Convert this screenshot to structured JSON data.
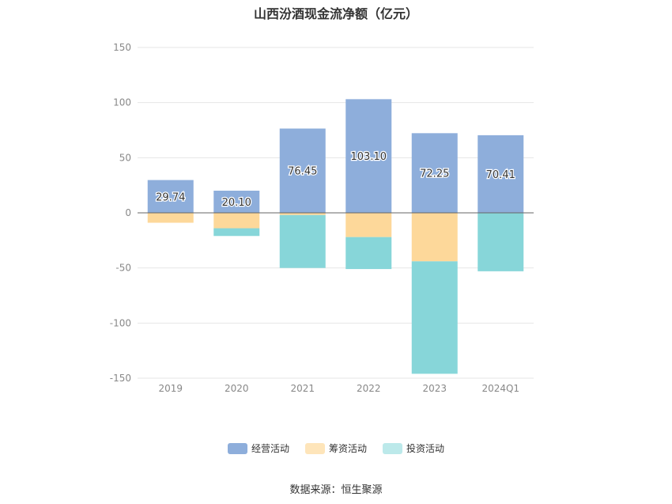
{
  "chart_data": {
    "type": "bar",
    "stacked": true,
    "title": "山西汾酒现金流净额（亿元）",
    "categories": [
      "2019",
      "2020",
      "2021",
      "2022",
      "2023",
      "2024Q1"
    ],
    "ylim": [
      -150,
      150
    ],
    "yticks": [
      150,
      100,
      50,
      0,
      -50,
      -100,
      -150
    ],
    "grid": true,
    "legend_position": "bottom",
    "series": [
      {
        "name": "经营活动",
        "color": "#8eaedb",
        "values": [
          29.74,
          20.1,
          76.45,
          103.1,
          72.25,
          70.41
        ],
        "labels": [
          "29.74",
          "20.10",
          "76.45",
          "103.10",
          "72.25",
          "70.41"
        ]
      },
      {
        "name": "筹资活动",
        "color": "#fdd89a",
        "values": [
          -9,
          -14,
          -2,
          -22,
          -44,
          0
        ]
      },
      {
        "name": "投资活动",
        "color": "#87d6d9",
        "values": [
          0,
          -7,
          -48,
          -29,
          -102,
          -53
        ]
      }
    ]
  },
  "legend_colors": [
    "#8eaedb",
    "#fee5ba",
    "#bce9ea"
  ],
  "source": "数据来源：恒生聚源"
}
